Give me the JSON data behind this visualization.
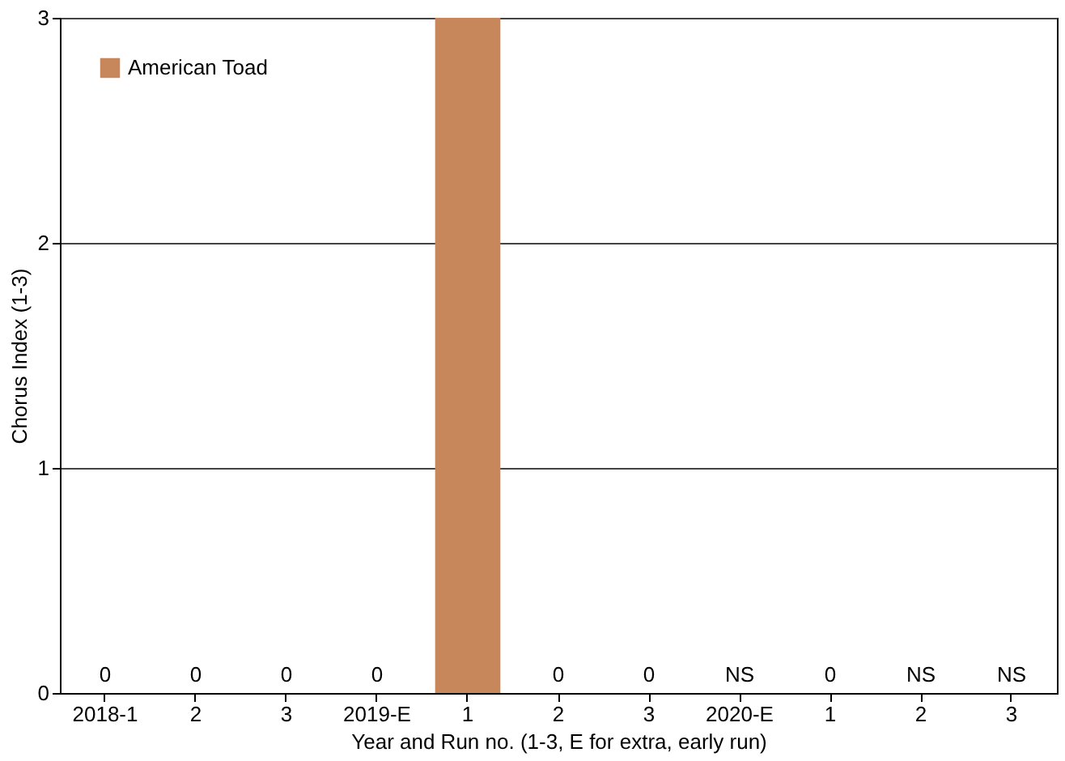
{
  "chart_data": {
    "type": "bar",
    "xlabel": "Year and Run no. (1-3, E for extra, early run)",
    "ylabel": "Chorus Index (1-3)",
    "categories": [
      "2018-1",
      "2",
      "3",
      "2019-E",
      "1",
      "2",
      "3",
      "2020-E",
      "1",
      "2",
      "3"
    ],
    "series": [
      {
        "name": "American Toad",
        "color": "#c8875a",
        "values": [
          0,
          0,
          0,
          0,
          3,
          0,
          0,
          null,
          0,
          null,
          null
        ],
        "value_labels": [
          "0",
          "0",
          "0",
          "0",
          null,
          "0",
          "0",
          "NS",
          "0",
          "NS",
          "NS"
        ]
      }
    ],
    "ylim": [
      0,
      3
    ],
    "yticks": [
      0,
      1,
      2,
      3
    ],
    "grid": "y",
    "legend": "top left"
  }
}
